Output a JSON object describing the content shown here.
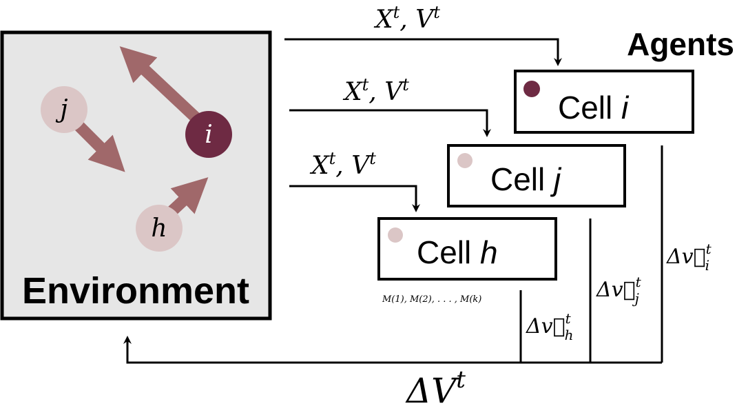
{
  "environment": {
    "label": "Environment",
    "particles": [
      {
        "label": "j"
      },
      {
        "label": "i"
      },
      {
        "label": "h"
      }
    ]
  },
  "agents": {
    "title": "Agents",
    "cells": [
      {
        "prefix": "Cell ",
        "name": "i"
      },
      {
        "prefix": "Cell ",
        "name": "j"
      },
      {
        "prefix": "Cell ",
        "name": "h"
      }
    ],
    "memory_label": "M(1), M(2), . . . , M(k)"
  },
  "signals": {
    "state": {
      "X": "X",
      "V": "V",
      "sup": "t"
    },
    "velocity_updates": [
      {
        "base": "Δv⃗",
        "sub": "i",
        "sup": "t"
      },
      {
        "base": "Δv⃗",
        "sub": "j",
        "sup": "t"
      },
      {
        "base": "Δv⃗",
        "sub": "h",
        "sup": "t"
      }
    ],
    "total_update": {
      "base": "ΔV",
      "sup": "t"
    }
  },
  "colors": {
    "box_fill": "#e6e6e6",
    "arrow": "#a0686a",
    "particle_i": "#6e2a43",
    "particle_light": "#dbc6c6",
    "stroke": "#000000"
  }
}
